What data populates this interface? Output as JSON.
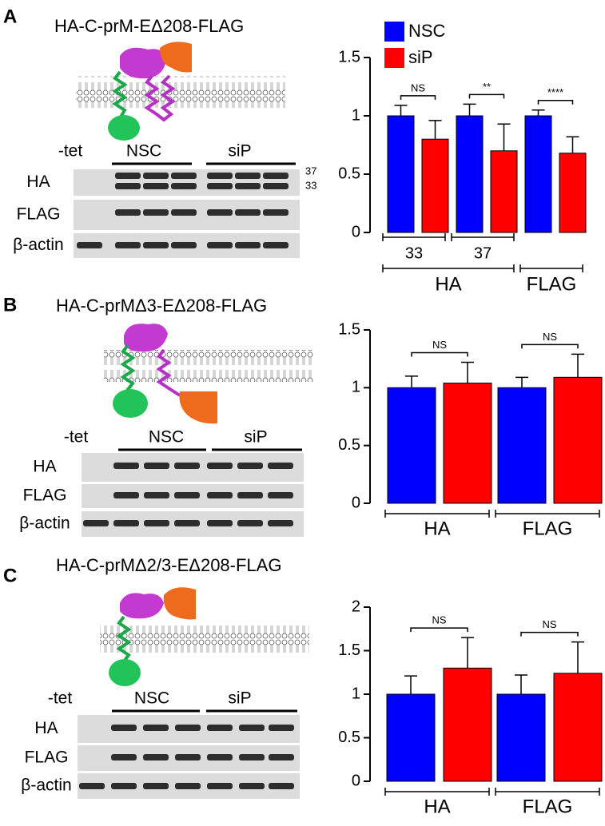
{
  "panels": [
    {
      "letter": "A",
      "title": "HA-C-prM-EΔ208-FLAG",
      "lanes": [
        "-tet",
        "NSC",
        "siP"
      ],
      "rows": [
        "HA",
        "FLAG",
        "β-actin"
      ],
      "markers": [
        "37",
        "33"
      ]
    },
    {
      "letter": "B",
      "title": "HA-C-prMΔ3-EΔ208-FLAG",
      "lanes": [
        "-tet",
        "NSC",
        "siP"
      ],
      "rows": [
        "HA",
        "FLAG",
        "β-actin"
      ]
    },
    {
      "letter": "C",
      "title": "HA-C-prMΔ2/3-EΔ208-FLAG",
      "lanes": [
        "-tet",
        "NSC",
        "siP"
      ],
      "rows": [
        "HA",
        "FLAG",
        "β-actin"
      ]
    }
  ],
  "chart_data": [
    {
      "type": "bar",
      "categories": [
        "33",
        "37",
        null
      ],
      "group_labels": [
        "HA",
        "FLAG"
      ],
      "series": [
        {
          "name": "NSC",
          "color": "#0000ff",
          "values": [
            1,
            1,
            1
          ],
          "errors": [
            0.09,
            0.1,
            0.05
          ]
        },
        {
          "name": "siP",
          "color": "#ff0000",
          "values": [
            0.8,
            0.7,
            0.68
          ],
          "errors": [
            0.16,
            0.23,
            0.14
          ]
        }
      ],
      "significance": [
        "NS",
        "**",
        "****"
      ],
      "ylim": [
        0,
        1.5
      ],
      "yticks": [
        0,
        0.5,
        1,
        1.5
      ],
      "legend": true
    },
    {
      "type": "bar",
      "categories": [
        "HA",
        "FLAG"
      ],
      "series": [
        {
          "color": "#0000ff",
          "values": [
            1,
            1
          ],
          "errors": [
            0.1,
            0.09
          ]
        },
        {
          "color": "#ff0000",
          "values": [
            1.04,
            1.09
          ],
          "errors": [
            0.18,
            0.2
          ]
        }
      ],
      "significance": [
        "NS",
        "NS"
      ],
      "ylim": [
        0,
        1.5
      ],
      "yticks": [
        0,
        0.5,
        1,
        1.5
      ],
      "legend": false
    },
    {
      "type": "bar",
      "categories": [
        "HA",
        "FLAG"
      ],
      "series": [
        {
          "color": "#0000ff",
          "values": [
            1,
            1
          ],
          "errors": [
            0.21,
            0.22
          ]
        },
        {
          "color": "#ff0000",
          "values": [
            1.3,
            1.24
          ],
          "errors": [
            0.35,
            0.36
          ]
        }
      ],
      "significance": [
        "NS",
        "NS"
      ],
      "ylim": [
        0,
        2
      ],
      "yticks": [
        0,
        0.5,
        1,
        1.5,
        2
      ],
      "legend": false
    }
  ]
}
